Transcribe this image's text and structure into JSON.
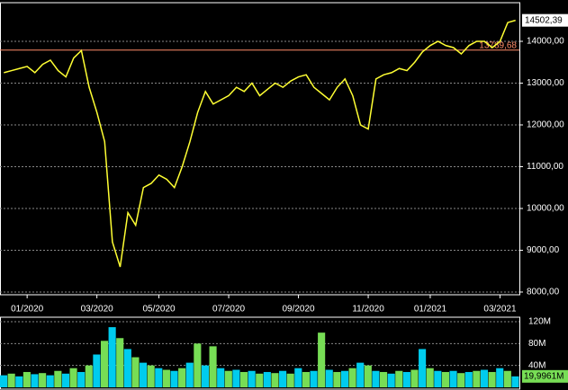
{
  "chart_data": [
    {
      "type": "line",
      "categories": [
        null,
        null,
        null,
        "01/2020",
        null,
        null,
        null,
        null,
        null,
        null,
        null,
        null,
        "03/2020",
        null,
        null,
        null,
        null,
        null,
        null,
        null,
        "05/2020",
        null,
        null,
        null,
        null,
        null,
        null,
        null,
        null,
        "07/2020",
        null,
        null,
        null,
        null,
        null,
        null,
        null,
        null,
        "09/2020",
        null,
        null,
        null,
        null,
        null,
        null,
        null,
        null,
        "11/2020",
        null,
        null,
        null,
        null,
        null,
        null,
        null,
        "01/2021",
        null,
        null,
        null,
        null,
        null,
        null,
        null,
        null,
        "03/2021",
        null,
        null
      ],
      "values": [
        13250,
        13300,
        13350,
        13400,
        13250,
        13450,
        13550,
        13300,
        13150,
        13600,
        13780,
        12900,
        12300,
        11600,
        9200,
        8600,
        9900,
        9600,
        10500,
        10600,
        10800,
        10700,
        10500,
        11000,
        11600,
        12300,
        12800,
        12500,
        12600,
        12700,
        12900,
        12800,
        13000,
        12700,
        12850,
        13000,
        12900,
        13050,
        13150,
        13200,
        12900,
        12750,
        12600,
        12900,
        13100,
        12700,
        12000,
        11900,
        13100,
        13200,
        13250,
        13350,
        13300,
        13500,
        13750,
        13900,
        14000,
        13900,
        13850,
        13700,
        13900,
        14000,
        14000,
        13850,
        14000,
        14450,
        14502.39
      ],
      "value_labels": [
        null,
        null,
        null,
        null,
        null,
        null,
        null,
        null,
        null,
        null,
        null,
        null,
        null,
        null,
        null,
        null,
        null,
        null,
        null,
        null,
        null,
        null,
        null,
        null,
        null,
        null,
        null,
        null,
        null,
        null,
        null,
        null,
        null,
        null,
        null,
        null,
        null,
        null,
        null,
        null,
        null,
        null,
        null,
        null,
        null,
        null,
        null,
        null,
        null,
        null,
        null,
        null,
        null,
        null,
        null,
        null,
        null,
        null,
        null,
        null,
        null,
        null,
        null,
        null,
        null,
        null,
        "14502,39"
      ],
      "color": "#ffff33",
      "ylim": [
        7935,
        14925
      ],
      "yticks": [
        {
          "value": 8000,
          "label": "8000,00"
        },
        {
          "value": 9000,
          "label": "9000,00"
        },
        {
          "value": 10000,
          "label": "10000,00"
        },
        {
          "value": 11000,
          "label": "11000,00"
        },
        {
          "value": 12000,
          "label": "12000,00"
        },
        {
          "value": 13000,
          "label": "13000,00"
        },
        {
          "value": 14000,
          "label": "14000,00"
        }
      ],
      "reference_line": {
        "value": 13789.68,
        "label": "13789,68",
        "color": "#ff8c69"
      },
      "grid": true
    },
    {
      "type": "bar",
      "values": [
        22,
        25,
        20,
        28,
        24,
        26,
        22,
        30,
        25,
        35,
        28,
        40,
        60,
        85,
        110,
        90,
        70,
        55,
        45,
        40,
        35,
        32,
        30,
        35,
        45,
        80,
        40,
        75,
        35,
        30,
        32,
        28,
        30,
        25,
        28,
        26,
        30,
        25,
        35,
        28,
        30,
        100,
        32,
        28,
        30,
        35,
        45,
        40,
        30,
        28,
        25,
        30,
        28,
        32,
        70,
        35,
        30,
        28,
        30,
        26,
        28,
        30,
        32,
        28,
        35,
        30,
        19.9961
      ],
      "value_labels": [
        null,
        null,
        null,
        null,
        null,
        null,
        null,
        null,
        null,
        null,
        null,
        null,
        null,
        null,
        null,
        null,
        null,
        null,
        null,
        null,
        null,
        null,
        null,
        null,
        null,
        null,
        null,
        null,
        null,
        null,
        null,
        null,
        null,
        null,
        null,
        null,
        null,
        null,
        null,
        null,
        null,
        null,
        null,
        null,
        null,
        null,
        null,
        null,
        null,
        null,
        null,
        null,
        null,
        null,
        null,
        null,
        null,
        null,
        null,
        null,
        null,
        null,
        null,
        null,
        null,
        null,
        "19,9961M"
      ],
      "colors": [
        "#00ccee",
        "#77dd55"
      ],
      "ylim": [
        0,
        120
      ],
      "yticks": [
        {
          "value": 40,
          "label": "40M"
        },
        {
          "value": 80,
          "label": "80M"
        },
        {
          "value": 120,
          "label": "120M"
        }
      ],
      "grid": true
    }
  ]
}
